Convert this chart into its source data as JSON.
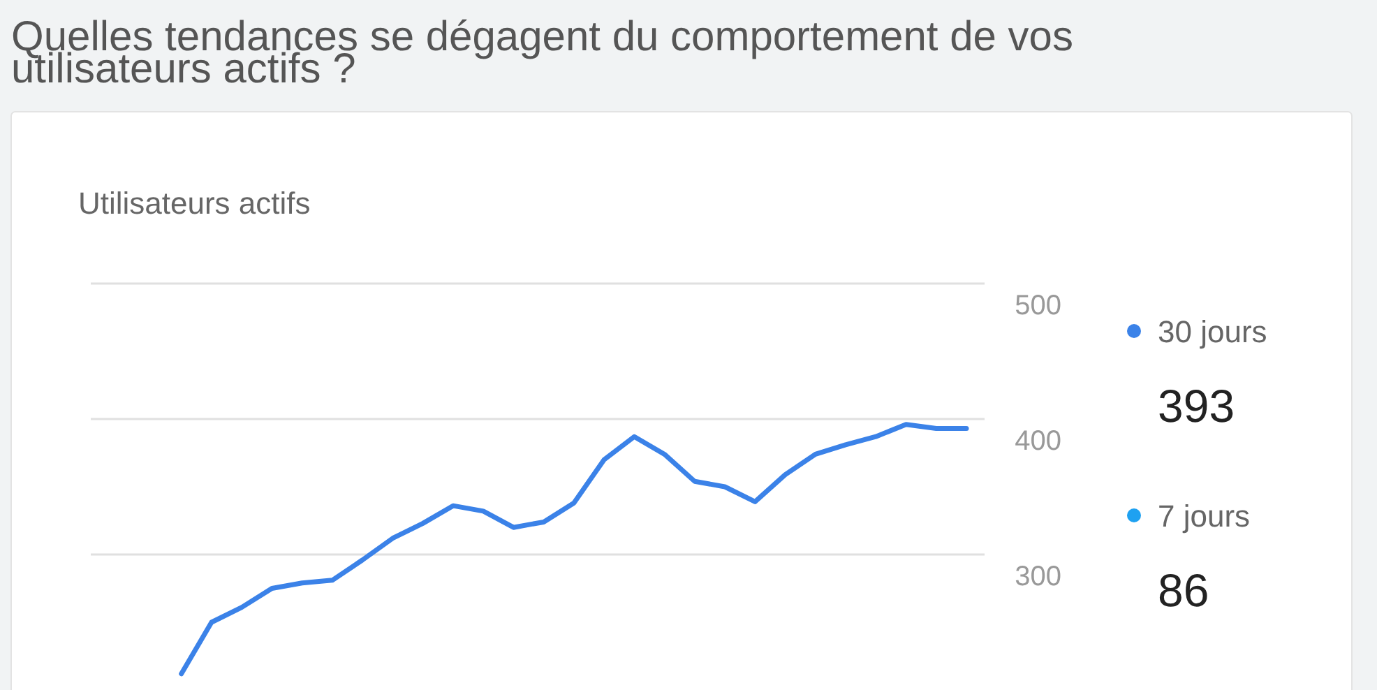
{
  "chart_data": {
    "type": "line",
    "title": "Quelles tendances se dégagent du comportement de vos utilisateurs actifs ?",
    "subtitle": "Utilisateurs actifs",
    "categories": [
      null,
      null,
      null,
      null,
      null,
      null,
      null,
      null,
      null,
      null,
      null,
      null,
      null,
      null,
      null,
      null,
      null,
      null,
      null,
      null,
      null,
      null,
      null,
      null,
      null,
      null,
      null,
      null,
      null,
      null
    ],
    "series": [
      {
        "name": "30 jours",
        "color": "#3b82e8",
        "values": [
          null,
          null,
          null,
          212,
          250,
          261,
          275,
          279,
          281,
          296,
          312,
          323,
          336,
          332,
          320,
          324,
          338,
          370,
          387,
          374,
          354,
          350,
          339,
          359,
          374,
          381,
          387,
          396,
          393,
          393
        ]
      },
      {
        "name": "7 jours",
        "color": "#1ea1f1",
        "values": [
          null,
          null,
          null,
          null,
          null,
          null,
          null,
          null,
          null,
          null,
          null,
          null,
          null,
          null,
          null,
          null,
          null,
          null,
          null,
          null,
          null,
          null,
          null,
          null,
          null,
          null,
          null,
          null,
          null,
          null
        ]
      }
    ],
    "annotations": [
      "393",
      "86"
    ],
    "ylim": [
      200,
      500
    ],
    "yticks": [
      300,
      400,
      500
    ],
    "grid": "y",
    "legend": "right",
    "marker": "none",
    "line_style": "solid"
  }
}
